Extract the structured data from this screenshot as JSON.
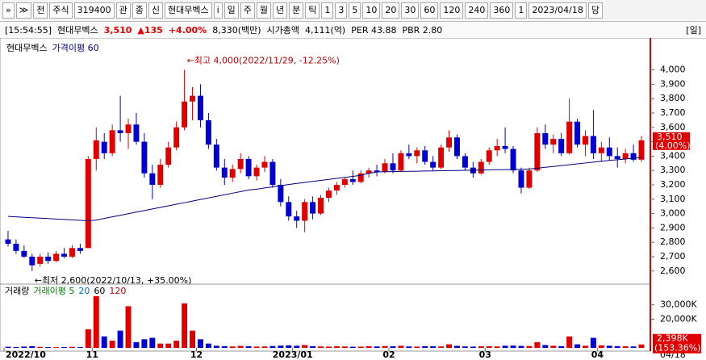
{
  "toolbar": [
    "»",
    "≫",
    "전",
    "주식",
    "319400",
    "관",
    "종",
    "신",
    "현대무벡스",
    "i",
    "일",
    "주",
    "월",
    "년",
    "분",
    "틱",
    "1",
    "3",
    "5",
    "10",
    "20",
    "30",
    "60",
    "120",
    "240",
    "360",
    "1",
    "2023/04/18",
    "당"
  ],
  "info": {
    "time": "[15:54:55]",
    "name": "현대무벡스",
    "price": "3,510",
    "change": "▲135",
    "rate": "+4.00%",
    "amount": "8,330(백만)",
    "cap_label": "시가총액",
    "cap": "4,111(억)",
    "per": "PER 43.88",
    "pbr": "PBR 2.80",
    "period": "[일]"
  },
  "chart_data": {
    "type": "candlestick",
    "legend": [
      "현대무벡스",
      "가격이평 60"
    ],
    "up_color": "#e00000",
    "down_color": "#0000d0",
    "ma_color": "#000080",
    "categories": [
      "2022/10",
      null,
      null,
      null,
      null,
      null,
      null,
      null,
      null,
      null,
      null,
      "11",
      null,
      null,
      null,
      null,
      null,
      null,
      null,
      null,
      null,
      null,
      null,
      null,
      "12",
      null,
      null,
      null,
      null,
      null,
      null,
      null,
      null,
      null,
      null,
      null,
      "2023/01",
      null,
      null,
      null,
      null,
      null,
      null,
      null,
      null,
      null,
      null,
      null,
      "02",
      null,
      null,
      null,
      null,
      null,
      null,
      null,
      null,
      null,
      null,
      null,
      "03",
      null,
      null,
      null,
      null,
      null,
      null,
      null,
      null,
      null,
      null,
      null,
      null,
      null,
      "04",
      null,
      null,
      null,
      null,
      null
    ],
    "last_date": "04/18",
    "candles": [
      [
        2820,
        2880,
        2770,
        2790
      ],
      [
        2790,
        2820,
        2720,
        2740
      ],
      [
        2740,
        2780,
        2690,
        2700
      ],
      [
        2700,
        2720,
        2600,
        2640
      ],
      [
        2650,
        2720,
        2630,
        2700
      ],
      [
        2700,
        2730,
        2650,
        2670
      ],
      [
        2670,
        2740,
        2660,
        2720
      ],
      [
        2720,
        2760,
        2690,
        2700
      ],
      [
        2700,
        2780,
        2690,
        2760
      ],
      [
        2760,
        2790,
        2720,
        2740
      ],
      [
        2760,
        3400,
        2760,
        3380
      ],
      [
        3380,
        3600,
        3300,
        3510
      ],
      [
        3500,
        3560,
        3380,
        3420
      ],
      [
        3420,
        3620,
        3400,
        3580
      ],
      [
        3580,
        3820,
        3500,
        3560
      ],
      [
        3560,
        3660,
        3450,
        3620
      ],
      [
        3620,
        3700,
        3480,
        3500
      ],
      [
        3500,
        3560,
        3250,
        3280
      ],
      [
        3280,
        3340,
        3100,
        3200
      ],
      [
        3200,
        3380,
        3180,
        3340
      ],
      [
        3340,
        3500,
        3320,
        3460
      ],
      [
        3460,
        3640,
        3440,
        3600
      ],
      [
        3600,
        4000,
        3580,
        3780
      ],
      [
        3780,
        3880,
        3650,
        3820
      ],
      [
        3820,
        3900,
        3600,
        3650
      ],
      [
        3650,
        3700,
        3450,
        3480
      ],
      [
        3480,
        3520,
        3300,
        3320
      ],
      [
        3320,
        3380,
        3200,
        3250
      ],
      [
        3250,
        3340,
        3220,
        3310
      ],
      [
        3310,
        3420,
        3280,
        3380
      ],
      [
        3380,
        3400,
        3240,
        3260
      ],
      [
        3260,
        3340,
        3230,
        3320
      ],
      [
        3320,
        3400,
        3290,
        3360
      ],
      [
        3360,
        3380,
        3180,
        3200
      ],
      [
        3200,
        3240,
        3050,
        3080
      ],
      [
        3080,
        3120,
        2950,
        2980
      ],
      [
        2980,
        3020,
        2900,
        2950
      ],
      [
        2950,
        3100,
        2870,
        3080
      ],
      [
        3080,
        3120,
        2960,
        3000
      ],
      [
        3000,
        3130,
        2990,
        3110
      ],
      [
        3110,
        3180,
        3080,
        3160
      ],
      [
        3160,
        3220,
        3130,
        3200
      ],
      [
        3200,
        3250,
        3180,
        3240
      ],
      [
        3240,
        3300,
        3200,
        3220
      ],
      [
        3220,
        3300,
        3210,
        3280
      ],
      [
        3280,
        3320,
        3250,
        3300
      ],
      [
        3300,
        3340,
        3260,
        3290
      ],
      [
        3290,
        3380,
        3280,
        3350
      ],
      [
        3350,
        3420,
        3280,
        3300
      ],
      [
        3300,
        3440,
        3290,
        3420
      ],
      [
        3420,
        3480,
        3380,
        3400
      ],
      [
        3400,
        3460,
        3350,
        3440
      ],
      [
        3440,
        3470,
        3340,
        3360
      ],
      [
        3360,
        3400,
        3300,
        3320
      ],
      [
        3320,
        3480,
        3310,
        3460
      ],
      [
        3460,
        3580,
        3430,
        3530
      ],
      [
        3530,
        3550,
        3380,
        3400
      ],
      [
        3400,
        3420,
        3300,
        3320
      ],
      [
        3320,
        3360,
        3250,
        3280
      ],
      [
        3280,
        3380,
        3270,
        3360
      ],
      [
        3360,
        3460,
        3340,
        3440
      ],
      [
        3440,
        3520,
        3400,
        3470
      ],
      [
        3470,
        3600,
        3420,
        3450
      ],
      [
        3450,
        3470,
        3280,
        3300
      ],
      [
        3300,
        3320,
        3140,
        3180
      ],
      [
        3180,
        3320,
        3170,
        3300
      ],
      [
        3300,
        3600,
        3290,
        3560
      ],
      [
        3560,
        3620,
        3450,
        3480
      ],
      [
        3480,
        3550,
        3420,
        3520
      ],
      [
        3520,
        3560,
        3400,
        3420
      ],
      [
        3420,
        3800,
        3410,
        3640
      ],
      [
        3640,
        3660,
        3460,
        3480
      ],
      [
        3480,
        3580,
        3400,
        3540
      ],
      [
        3540,
        3720,
        3380,
        3420
      ],
      [
        3420,
        3500,
        3360,
        3460
      ],
      [
        3460,
        3530,
        3370,
        3400
      ],
      [
        3400,
        3460,
        3320,
        3380
      ],
      [
        3380,
        3450,
        3350,
        3420
      ],
      [
        3420,
        3480,
        3360,
        3375
      ],
      [
        3375,
        3540,
        3360,
        3510
      ]
    ],
    "ma60": [
      2980,
      2977,
      2974,
      2971,
      2968,
      2965,
      2962,
      2959,
      2956,
      2953,
      2950,
      2955,
      2966,
      2977,
      2988,
      2999,
      3010,
      3021,
      3032,
      3043,
      3054,
      3065,
      3076,
      3087,
      3098,
      3109,
      3120,
      3131,
      3142,
      3153,
      3164,
      3170,
      3178,
      3186,
      3194,
      3202,
      3210,
      3217,
      3224,
      3231,
      3238,
      3245,
      3252,
      3259,
      3266,
      3280,
      3290,
      3291,
      3292,
      3293,
      3294,
      3295,
      3296,
      3297,
      3298,
      3299,
      3300,
      3301,
      3302,
      3303,
      3304,
      3305,
      3306,
      3307,
      3308,
      3310,
      3316,
      3322,
      3328,
      3334,
      3340,
      3346,
      3352,
      3358,
      3364,
      3370,
      3375,
      3380,
      3385,
      3390
    ],
    "ylim": [
      2520,
      4217
    ],
    "yticks": [
      {
        "value": 2600,
        "label": "2,600"
      },
      {
        "value": 2700,
        "label": "2,700"
      },
      {
        "value": 2800,
        "label": "2,800"
      },
      {
        "value": 2900,
        "label": "2,900"
      },
      {
        "value": 3000,
        "label": "3,000"
      },
      {
        "value": 3100,
        "label": "3,100"
      },
      {
        "value": 3200,
        "label": "3,200"
      },
      {
        "value": 3300,
        "label": "3,300"
      },
      {
        "value": 3400,
        "label": "3,400"
      },
      {
        "value": 3500,
        "label": "3,500"
      },
      {
        "value": 3600,
        "label": "3,600"
      },
      {
        "value": 3700,
        "label": "3,700"
      },
      {
        "value": 3800,
        "label": "3,800"
      },
      {
        "value": 3900,
        "label": "3,900"
      },
      {
        "value": 4000,
        "label": "4,000"
      }
    ],
    "last_price": {
      "value": 3510,
      "label": "3,510",
      "rate": "(4.00%)"
    },
    "annotations": [
      {
        "text": "←최고 4,000(2022/11/29, -12.25%)",
        "index": 22,
        "value": 4000
      },
      {
        "text": "←최저 2,600(2022/10/13, +35.00%)",
        "index": 3,
        "value": 2600
      }
    ],
    "volume": {
      "legend": [
        {
          "text": "거래량",
          "color": "#000000"
        },
        {
          "text": "거래이평 5",
          "color": "#008000"
        },
        {
          "text": "20",
          "color": "#0070c0"
        },
        {
          "text": "60",
          "color": "#000000"
        },
        {
          "text": "120",
          "color": "#c00000"
        }
      ],
      "values": [
        800,
        600,
        900,
        1200,
        700,
        600,
        500,
        600,
        700,
        500,
        13000,
        36000,
        8000,
        5000,
        12000,
        29000,
        4000,
        6000,
        7000,
        3000,
        3000,
        5000,
        31000,
        12000,
        6000,
        3000,
        1500,
        1200,
        1000,
        1400,
        1100,
        900,
        1000,
        1300,
        1600,
        1800,
        1500,
        2000,
        1200,
        1000,
        900,
        1100,
        1000,
        800,
        900,
        1200,
        1000,
        1300,
        1100,
        1500,
        1000,
        900,
        1200,
        1100,
        1000,
        2500,
        1400,
        1000,
        900,
        1100,
        1200,
        1000,
        1500,
        1600,
        1400,
        1300,
        4000,
        2000,
        1500,
        1200,
        8000,
        2500,
        1500,
        7000,
        1800,
        1500,
        1200,
        1100,
        1000,
        2398
      ],
      "value_labels": {
        "79": "2,398K"
      },
      "last_rate": "(153.36%)",
      "ylim": [
        0,
        35400
      ],
      "yticks": [
        {
          "value": 20000,
          "label": "20,000K"
        },
        {
          "value": 30000,
          "label": "30,000K"
        }
      ]
    }
  }
}
